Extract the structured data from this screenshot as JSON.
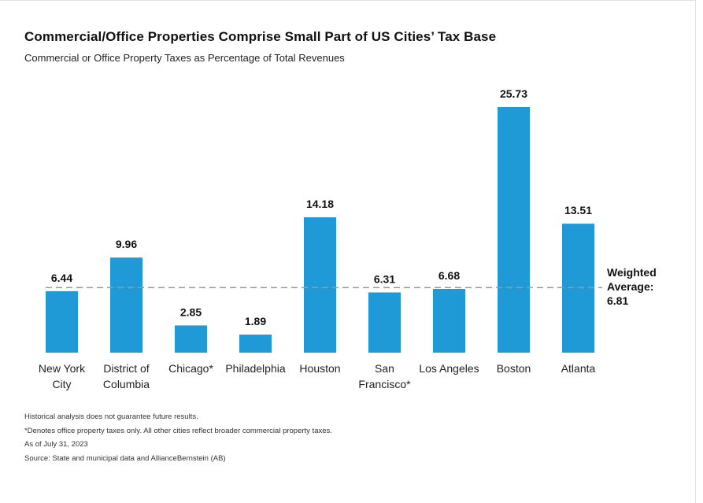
{
  "title": "Commercial/Office Properties Comprise Small Part of US Cities’ Tax Base",
  "subtitle": "Commercial or Office Property Taxes as Percentage of Total Revenues",
  "average": {
    "line1": "Weighted",
    "line2": "Average:",
    "value": "6.81"
  },
  "footnotes": [
    "Historical analysis does not guarantee future results.",
    "*Denotes office property taxes only. All other cities reflect broader commercial property taxes.",
    "As of July 31, 2023",
    "Source: State and municipal data and AllianceBernstein (AB)"
  ],
  "colors": {
    "bar": "#1f9ad6",
    "average_line": "#999999",
    "text": "#111111"
  },
  "chart_data": {
    "type": "bar",
    "categories": [
      [
        "New York",
        "City"
      ],
      [
        "District of",
        "Columbia"
      ],
      [
        "Chicago*"
      ],
      [
        "Philadelphia"
      ],
      [
        "Houston"
      ],
      [
        "San",
        "Francisco*"
      ],
      [
        "Los Angeles"
      ],
      [
        "Boston"
      ],
      [
        "Atlanta"
      ]
    ],
    "values": [
      6.44,
      9.96,
      2.85,
      1.89,
      14.18,
      6.31,
      6.68,
      25.73,
      13.51
    ],
    "data_labels": [
      "6.44",
      "9.96",
      "2.85",
      "1.89",
      "14.18",
      "6.31",
      "6.68",
      "25.73",
      "13.51"
    ],
    "reference_line": {
      "value": 6.81,
      "style": "dashed"
    },
    "ylim": [
      0,
      25.73
    ],
    "grid": false,
    "legend": "none"
  }
}
